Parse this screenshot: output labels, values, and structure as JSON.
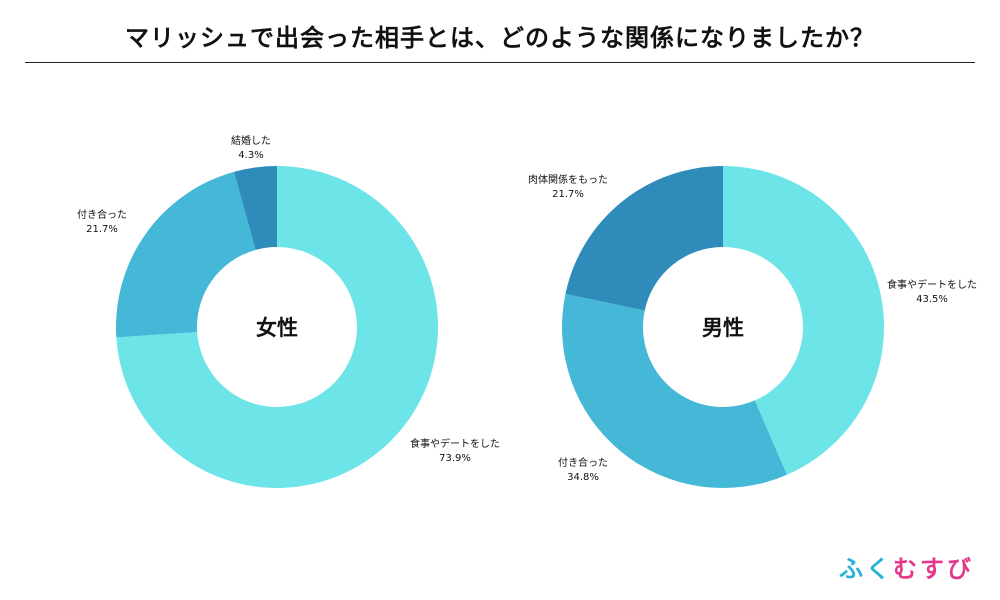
{
  "title": "マリッシュで出会った相手とは、どのような関係になりましたか？",
  "colors": {
    "light": "#6ce4e8",
    "mid": "#44b8d6",
    "dark": "#2e8bba"
  },
  "chart_data": [
    {
      "type": "pie",
      "center_label": "女性",
      "slices": [
        {
          "label": "食事やデートをした",
          "value": 73.9,
          "value_text": "73.9%",
          "color": "#6ce4e8"
        },
        {
          "label": "付き合った",
          "value": 21.7,
          "value_text": "21.7%",
          "color": "#44b8d6"
        },
        {
          "label": "結婚した",
          "value": 4.3,
          "value_text": "4.3%",
          "color": "#2e8bba"
        }
      ]
    },
    {
      "type": "pie",
      "center_label": "男性",
      "slices": [
        {
          "label": "食事やデートをした",
          "value": 43.5,
          "value_text": "43.5%",
          "color": "#6ce4e8"
        },
        {
          "label": "付き合った",
          "value": 34.8,
          "value_text": "34.8%",
          "color": "#44b8d6"
        },
        {
          "label": "肉体関係をもった",
          "value": 21.7,
          "value_text": "21.7%",
          "color": "#2e8bba"
        }
      ]
    }
  ],
  "logo": {
    "chars": [
      "ふ",
      "く",
      "む",
      "す",
      "び"
    ],
    "colors": [
      "#27b3d6",
      "#27b3d6",
      "#e4388a",
      "#e4388a",
      "#e4388a"
    ]
  }
}
